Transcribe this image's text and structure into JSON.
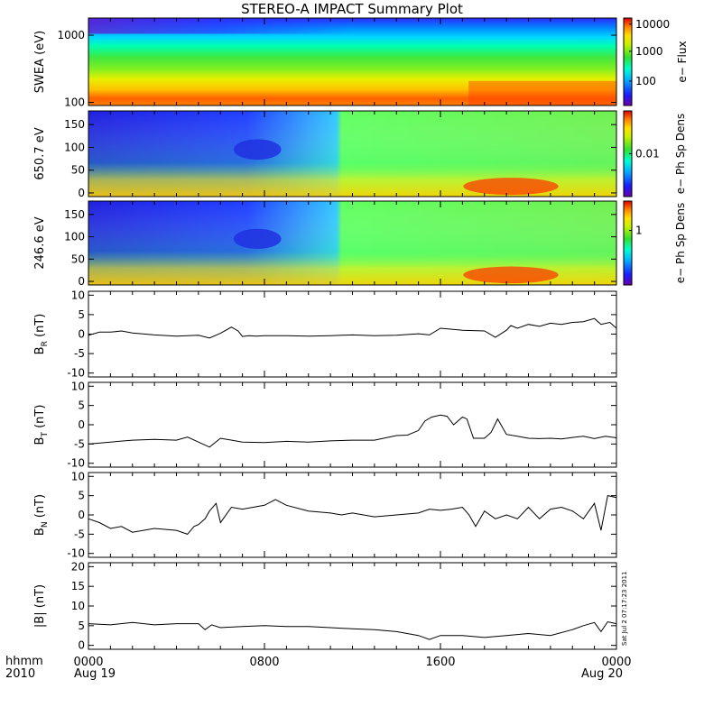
{
  "title": "STEREO-A IMPACT Summary Plot",
  "footer": {
    "time_label": "hhmm",
    "year_label": "2010",
    "start_date": "Aug 19",
    "end_date": "Aug 20",
    "stamp": "Sat Jul  2 07:17:23 2011"
  },
  "x_axis": {
    "range_hours": [
      0,
      24
    ],
    "ticks": [
      {
        "hour": 0,
        "label": "0000"
      },
      {
        "hour": 8,
        "label": "0800"
      },
      {
        "hour": 16,
        "label": "1600"
      },
      {
        "hour": 24,
        "label": "0000"
      }
    ]
  },
  "spectrograms": [
    {
      "ylabel": "SWEA (eV)",
      "scale": "log",
      "ylim": [
        90,
        1800
      ],
      "yticks": [
        {
          "v": 100,
          "label": "100"
        },
        {
          "v": 1000,
          "label": "1000"
        }
      ],
      "colorbar_label": "e− Flux",
      "colorbar_ticks": [
        {
          "f": 0.28,
          "label": "100"
        },
        {
          "f": 0.62,
          "label": "1000"
        },
        {
          "f": 0.93,
          "label": "10000"
        }
      ]
    },
    {
      "ylabel": "650.7 eV",
      "scale": "linear",
      "ylim": [
        -8,
        180
      ],
      "yticks": [
        {
          "v": 0,
          "label": "0"
        },
        {
          "v": 50,
          "label": "50"
        },
        {
          "v": 100,
          "label": "100"
        },
        {
          "v": 150,
          "label": "150"
        }
      ],
      "colorbar_label": "e− Ph Sp Dens",
      "colorbar_ticks": [
        {
          "f": 0.5,
          "label": "0.01"
        }
      ]
    },
    {
      "ylabel": "246.6 eV",
      "scale": "linear",
      "ylim": [
        -8,
        180
      ],
      "yticks": [
        {
          "v": 0,
          "label": "0"
        },
        {
          "v": 50,
          "label": "50"
        },
        {
          "v": 100,
          "label": "100"
        },
        {
          "v": 150,
          "label": "150"
        }
      ],
      "colorbar_label": "e− Ph Sp Dens",
      "colorbar_ticks": [
        {
          "f": 0.65,
          "label": "1"
        }
      ]
    }
  ],
  "chart_data": [
    {
      "type": "line",
      "ylabel_main": "B",
      "ylabel_sub": "R",
      "ylabel_unit": "(nT)",
      "ylim": [
        -11,
        11
      ],
      "yticks": [
        -10,
        -5,
        0,
        5,
        10
      ],
      "x": [
        0,
        0.5,
        1,
        1.5,
        2,
        3,
        4,
        5,
        5.5,
        6,
        6.5,
        6.8,
        7,
        7.3,
        7.6,
        8,
        9,
        10,
        11,
        12,
        13,
        14,
        15,
        15.5,
        16,
        17,
        18,
        18.5,
        19,
        19.2,
        19.5,
        20,
        20.5,
        21,
        21.5,
        22,
        22.5,
        23,
        23.3,
        23.7,
        24
      ],
      "values": [
        -0.3,
        0.5,
        0.5,
        0.8,
        0.3,
        -0.2,
        -0.5,
        -0.3,
        -1,
        0.2,
        1.8,
        0.8,
        -0.6,
        -0.4,
        -0.5,
        -0.4,
        -0.4,
        -0.5,
        -0.4,
        -0.2,
        -0.4,
        -0.3,
        0.1,
        -0.2,
        1.5,
        1,
        0.8,
        -0.8,
        1,
        2.2,
        1.5,
        2.5,
        2,
        2.8,
        2.5,
        3,
        3.2,
        4,
        2.5,
        3,
        1.5
      ]
    },
    {
      "type": "line",
      "ylabel_main": "B",
      "ylabel_sub": "T",
      "ylabel_unit": "(nT)",
      "ylim": [
        -11,
        11
      ],
      "yticks": [
        -10,
        -5,
        0,
        5,
        10
      ],
      "x": [
        0,
        1,
        2,
        3,
        4,
        4.5,
        5,
        5.5,
        6,
        7,
        8,
        9,
        10,
        11,
        12,
        13,
        14,
        14.5,
        15,
        15.3,
        15.6,
        16,
        16.3,
        16.6,
        17,
        17.2,
        17.5,
        18,
        18.3,
        18.6,
        19,
        19.5,
        20,
        20.5,
        21,
        21.5,
        22,
        22.5,
        23,
        23.5,
        24
      ],
      "values": [
        -5,
        -4.5,
        -4,
        -3.8,
        -4,
        -3.2,
        -4.5,
        -5.8,
        -3.5,
        -4.5,
        -4.6,
        -4.3,
        -4.5,
        -4.2,
        -4,
        -4,
        -2.8,
        -2.7,
        -1.5,
        1,
        2,
        2.5,
        2.2,
        0,
        2,
        1.5,
        -3.5,
        -3.5,
        -2,
        1.5,
        -2.5,
        -3,
        -3.5,
        -3.6,
        -3.5,
        -3.7,
        -3.3,
        -3,
        -3.6,
        -3,
        -3.4
      ]
    },
    {
      "type": "line",
      "ylabel_main": "B",
      "ylabel_sub": "N",
      "ylabel_unit": "(nT)",
      "ylim": [
        -11,
        11
      ],
      "yticks": [
        -10,
        -5,
        0,
        5,
        10
      ],
      "x": [
        0,
        0.5,
        1,
        1.5,
        2,
        3,
        4,
        4.5,
        4.8,
        5,
        5.3,
        5.5,
        5.8,
        6,
        6.5,
        7,
        8,
        8.5,
        9,
        10,
        11,
        11.5,
        12,
        13,
        14,
        15,
        15.5,
        16,
        16.5,
        17,
        17.3,
        17.6,
        18,
        18.5,
        19,
        19.5,
        20,
        20.5,
        21,
        21.5,
        22,
        22.5,
        23,
        23.3,
        23.6,
        24
      ],
      "values": [
        -1,
        -2,
        -3.5,
        -3,
        -4.5,
        -3.5,
        -4,
        -5,
        -3,
        -2.5,
        -1,
        1,
        3,
        -2,
        2,
        1.5,
        2.5,
        4,
        2.5,
        1,
        0.5,
        0,
        0.5,
        -0.5,
        0,
        0.5,
        1.5,
        1.2,
        1.5,
        2,
        0,
        -3,
        1,
        -1,
        0,
        -1,
        2,
        -1,
        1.5,
        2,
        1,
        -1,
        3,
        -4,
        5,
        4.5
      ]
    },
    {
      "type": "line",
      "ylabel_main": "|B|",
      "ylabel_sub": "",
      "ylabel_unit": "(nT)",
      "ylim": [
        -1,
        21
      ],
      "yticks": [
        0,
        5,
        10,
        15,
        20
      ],
      "x": [
        0,
        1,
        2,
        3,
        4,
        5,
        5.3,
        5.6,
        6,
        7,
        8,
        9,
        10,
        11,
        12,
        13,
        14,
        15,
        15.5,
        16,
        17,
        18,
        19,
        20,
        21,
        22,
        22.5,
        23,
        23.3,
        23.6,
        24
      ],
      "values": [
        5.5,
        5.2,
        5.8,
        5.2,
        5.5,
        5.5,
        4,
        5.2,
        4.5,
        4.8,
        5,
        4.8,
        4.8,
        4.5,
        4.2,
        4,
        3.5,
        2.5,
        1.5,
        2.5,
        2.5,
        2,
        2.5,
        3,
        2.5,
        4,
        5,
        5.8,
        3.5,
        6,
        5.5
      ]
    }
  ]
}
